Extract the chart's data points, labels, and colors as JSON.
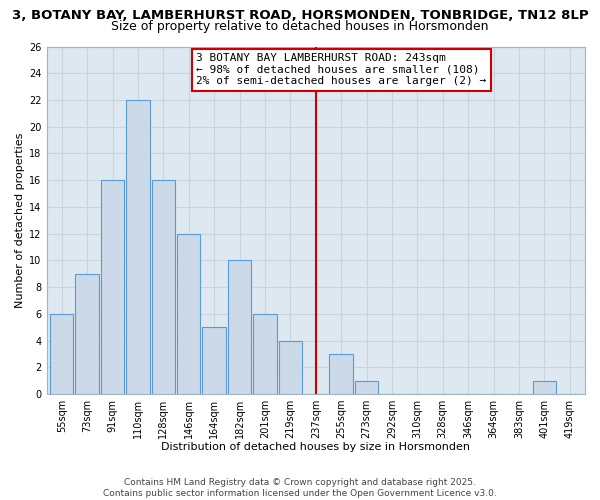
{
  "title_line1": "3, BOTANY BAY, LAMBERHURST ROAD, HORSMONDEN, TONBRIDGE, TN12 8LP",
  "title_line2": "Size of property relative to detached houses in Horsmonden",
  "xlabel": "Distribution of detached houses by size in Horsmonden",
  "ylabel": "Number of detached properties",
  "bar_labels": [
    "55sqm",
    "73sqm",
    "91sqm",
    "110sqm",
    "128sqm",
    "146sqm",
    "164sqm",
    "182sqm",
    "201sqm",
    "219sqm",
    "237sqm",
    "255sqm",
    "273sqm",
    "292sqm",
    "310sqm",
    "328sqm",
    "346sqm",
    "364sqm",
    "383sqm",
    "401sqm",
    "419sqm"
  ],
  "bar_values": [
    6,
    9,
    16,
    22,
    16,
    12,
    5,
    10,
    6,
    4,
    0,
    3,
    1,
    0,
    0,
    0,
    0,
    0,
    0,
    1,
    0
  ],
  "bar_color": "#ccd9e8",
  "bar_edge_color": "#5b9bd5",
  "vline_x": 10.0,
  "vline_color": "#cc0000",
  "annotation_text": "3 BOTANY BAY LAMBERHURST ROAD: 243sqm\n← 98% of detached houses are smaller (108)\n2% of semi-detached houses are larger (2) →",
  "annotation_box_facecolor": "#ffffff",
  "annotation_border_color": "#cc0000",
  "ylim": [
    0,
    26
  ],
  "yticks": [
    0,
    2,
    4,
    6,
    8,
    10,
    12,
    14,
    16,
    18,
    20,
    22,
    24,
    26
  ],
  "grid_color": "#c8d4e0",
  "plot_bg_color": "#dde8f0",
  "figure_bg_color": "#ffffff",
  "footer_line1": "Contains HM Land Registry data © Crown copyright and database right 2025.",
  "footer_line2": "Contains public sector information licensed under the Open Government Licence v3.0.",
  "title_fontsize": 9.5,
  "subtitle_fontsize": 9,
  "axis_label_fontsize": 8,
  "tick_fontsize": 7,
  "annotation_fontsize": 8,
  "footer_fontsize": 6.5
}
